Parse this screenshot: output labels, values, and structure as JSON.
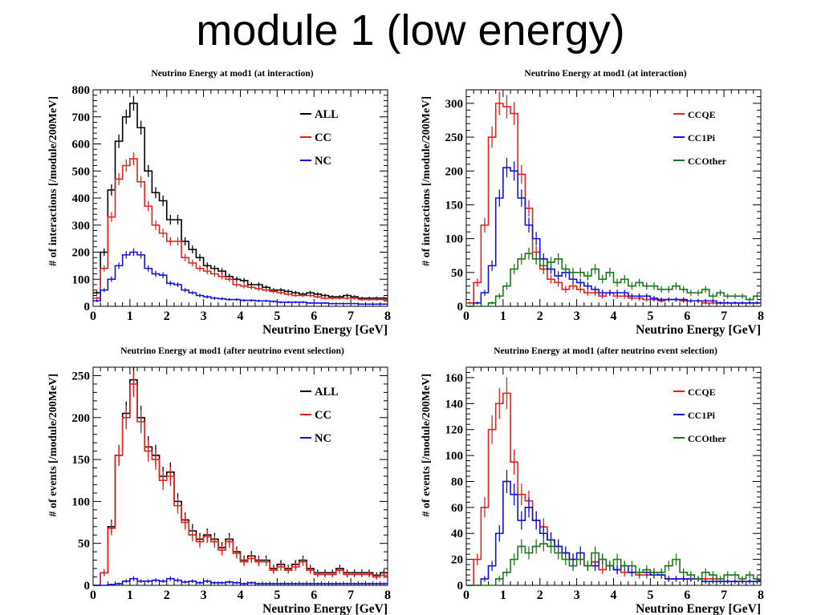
{
  "slide": {
    "title": "module 1 (low energy)"
  },
  "colors": {
    "ALL": "#000000",
    "CC": "#e8201a",
    "NC": "#1010e0",
    "CCQE": "#e8201a",
    "CC1Pi": "#1010e0",
    "CCOther": "#1a7a1a"
  },
  "chart_data": [
    {
      "type": "line",
      "title": "Neutrino Energy at mod1 (at interaction)",
      "xlabel": "Neutrino Energy [GeV]",
      "ylabel": "# of interactions [/module/200MeV]",
      "xlim": [
        0,
        8
      ],
      "ylim": [
        0,
        800
      ],
      "xticks": [
        0,
        1,
        2,
        3,
        4,
        5,
        6,
        7,
        8
      ],
      "yticks": [
        0,
        100,
        200,
        300,
        400,
        500,
        600,
        700,
        800
      ],
      "legend_position": "top-right",
      "bin_width": 0.2,
      "series": [
        {
          "name": "ALL",
          "color": "#000000",
          "values": [
            50,
            200,
            430,
            610,
            700,
            750,
            660,
            500,
            420,
            390,
            320,
            320,
            240,
            210,
            180,
            150,
            140,
            130,
            110,
            100,
            95,
            80,
            80,
            70,
            60,
            60,
            55,
            50,
            45,
            50,
            45,
            40,
            35,
            35,
            40,
            35,
            30,
            30,
            30,
            30
          ]
        },
        {
          "name": "CC",
          "color": "#e8201a",
          "values": [
            30,
            140,
            330,
            470,
            520,
            545,
            460,
            370,
            300,
            270,
            240,
            240,
            180,
            160,
            140,
            130,
            120,
            110,
            100,
            80,
            75,
            70,
            65,
            60,
            55,
            50,
            45,
            40,
            40,
            40,
            35,
            30,
            30,
            30,
            30,
            30,
            25,
            25,
            25,
            25
          ]
        },
        {
          "name": "NC",
          "color": "#1010e0",
          "values": [
            20,
            60,
            100,
            150,
            190,
            200,
            190,
            140,
            120,
            115,
            85,
            80,
            60,
            50,
            40,
            35,
            30,
            28,
            25,
            25,
            22,
            22,
            20,
            20,
            18,
            15,
            15,
            15,
            15,
            12,
            12,
            12,
            10,
            10,
            10,
            10,
            8,
            8,
            8,
            8
          ]
        }
      ]
    },
    {
      "type": "line",
      "title": "Neutrino Energy at mod1 (at interaction)",
      "xlabel": "Neutrino Energy [GeV]",
      "ylabel": "# of interactions [/module/200MeV]",
      "xlim": [
        0,
        8
      ],
      "ylim": [
        0,
        320
      ],
      "xticks": [
        0,
        1,
        2,
        3,
        4,
        5,
        6,
        7,
        8
      ],
      "yticks": [
        0,
        50,
        100,
        150,
        200,
        250,
        300
      ],
      "legend_position": "top-right",
      "bin_width": 0.2,
      "series": [
        {
          "name": "CCQE",
          "color": "#e8201a",
          "values": [
            5,
            35,
            120,
            250,
            300,
            295,
            285,
            195,
            145,
            80,
            55,
            40,
            35,
            25,
            30,
            25,
            20,
            20,
            15,
            20,
            15,
            15,
            12,
            12,
            10,
            10,
            8,
            10,
            10,
            8,
            8,
            8,
            5,
            5,
            5,
            5,
            5,
            5,
            5,
            5
          ]
        },
        {
          "name": "CC1Pi",
          "color": "#1010e0",
          "values": [
            0,
            5,
            20,
            60,
            160,
            205,
            200,
            160,
            120,
            100,
            70,
            55,
            45,
            50,
            40,
            35,
            30,
            25,
            20,
            20,
            20,
            20,
            15,
            15,
            15,
            12,
            10,
            10,
            10,
            10,
            8,
            8,
            8,
            8,
            5,
            5,
            5,
            5,
            5,
            5
          ]
        },
        {
          "name": "CCOther",
          "color": "#1a7a1a",
          "values": [
            0,
            0,
            0,
            5,
            15,
            30,
            55,
            70,
            78,
            70,
            60,
            65,
            70,
            55,
            50,
            50,
            45,
            55,
            40,
            50,
            35,
            40,
            30,
            35,
            30,
            30,
            25,
            25,
            30,
            25,
            20,
            20,
            25,
            15,
            20,
            15,
            15,
            15,
            10,
            15
          ]
        }
      ]
    },
    {
      "type": "line",
      "title": "Neutrino Energy at mod1 (after neutrino event selection)",
      "xlabel": "Neutrino Energy [GeV]",
      "ylabel": "# of events [/module/200MeV]",
      "xlim": [
        0,
        8
      ],
      "ylim": [
        0,
        260
      ],
      "xticks": [
        0,
        1,
        2,
        3,
        4,
        5,
        6,
        7,
        8
      ],
      "yticks": [
        0,
        50,
        100,
        150,
        200,
        250
      ],
      "legend_position": "top-right",
      "bin_width": 0.2,
      "series": [
        {
          "name": "ALL",
          "color": "#000000",
          "values": [
            0,
            15,
            70,
            155,
            205,
            245,
            200,
            165,
            155,
            130,
            135,
            100,
            78,
            65,
            55,
            60,
            55,
            45,
            55,
            40,
            30,
            35,
            30,
            30,
            20,
            25,
            20,
            25,
            30,
            20,
            15,
            15,
            15,
            20,
            15,
            15,
            15,
            15,
            12,
            15
          ]
        },
        {
          "name": "CC",
          "color": "#e8201a",
          "values": [
            0,
            15,
            68,
            155,
            200,
            240,
            195,
            160,
            150,
            125,
            130,
            95,
            75,
            60,
            52,
            58,
            52,
            42,
            52,
            38,
            28,
            32,
            28,
            28,
            18,
            22,
            18,
            22,
            28,
            18,
            13,
            13,
            13,
            18,
            13,
            13,
            13,
            13,
            10,
            12
          ]
        },
        {
          "name": "NC",
          "color": "#1010e0",
          "values": [
            0,
            0,
            1,
            2,
            5,
            8,
            5,
            5,
            6,
            5,
            8,
            6,
            4,
            5,
            3,
            5,
            3,
            3,
            4,
            3,
            2,
            3,
            2,
            2,
            2,
            2,
            2,
            2,
            2,
            2,
            2,
            2,
            2,
            2,
            2,
            2,
            2,
            2,
            2,
            2
          ]
        }
      ]
    },
    {
      "type": "line",
      "title": "Neutrino Energy at mod1 (after neutrino event selection)",
      "xlabel": "Neutrino Energy [GeV]",
      "ylabel": "# of events [/module/200MeV]",
      "xlim": [
        0,
        8
      ],
      "ylim": [
        0,
        168
      ],
      "xticks": [
        0,
        1,
        2,
        3,
        4,
        5,
        6,
        7,
        8
      ],
      "yticks": [
        0,
        20,
        40,
        60,
        80,
        100,
        120,
        140,
        160
      ],
      "legend_position": "top-right",
      "bin_width": 0.2,
      "series": [
        {
          "name": "CCQE",
          "color": "#e8201a",
          "values": [
            0,
            20,
            60,
            120,
            140,
            148,
            95,
            70,
            65,
            50,
            45,
            35,
            30,
            25,
            20,
            20,
            15,
            18,
            12,
            15,
            12,
            10,
            10,
            8,
            8,
            10,
            8,
            5,
            5,
            5,
            5,
            5,
            5,
            5,
            3,
            3,
            3,
            3,
            3,
            3
          ]
        },
        {
          "name": "CC1Pi",
          "color": "#1010e0",
          "values": [
            0,
            0,
            5,
            15,
            40,
            80,
            70,
            50,
            60,
            50,
            40,
            35,
            30,
            25,
            20,
            25,
            15,
            15,
            20,
            15,
            12,
            15,
            10,
            10,
            10,
            8,
            8,
            5,
            5,
            5,
            5,
            5,
            3,
            3,
            3,
            3,
            3,
            3,
            3,
            3
          ]
        },
        {
          "name": "CCOther",
          "color": "#1a7a1a",
          "values": [
            0,
            0,
            0,
            0,
            5,
            10,
            20,
            30,
            25,
            30,
            32,
            30,
            25,
            20,
            15,
            20,
            15,
            25,
            20,
            15,
            20,
            15,
            15,
            10,
            12,
            10,
            10,
            15,
            20,
            10,
            8,
            5,
            10,
            8,
            5,
            8,
            8,
            5,
            8,
            5
          ]
        }
      ]
    }
  ]
}
